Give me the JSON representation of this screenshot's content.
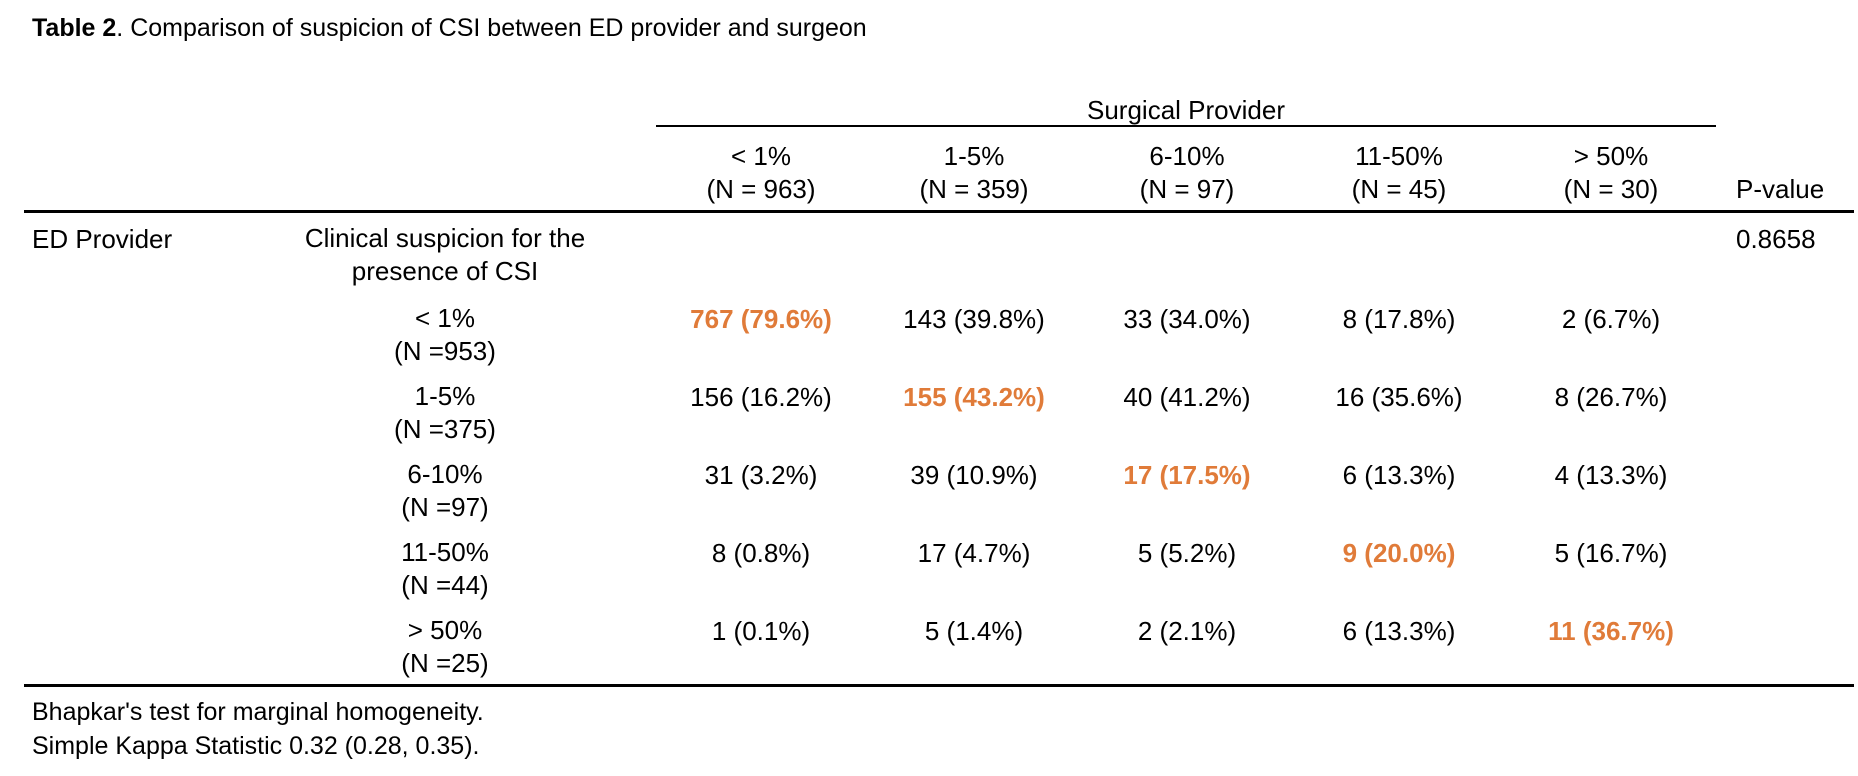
{
  "caption": {
    "bold": "Table 2",
    "rest": ". Comparison of suspicion of CSI between ED provider and surgeon"
  },
  "surgical_provider_label": "Surgical Provider",
  "columns": [
    {
      "range": "< 1%",
      "n": "(N = 963)"
    },
    {
      "range": "1-5%",
      "n": "(N = 359)"
    },
    {
      "range": "6-10%",
      "n": "(N = 97)"
    },
    {
      "range": "11-50%",
      "n": "(N = 45)"
    },
    {
      "range": "> 50%",
      "n": "(N = 30)"
    }
  ],
  "pvalue_header": "P-value",
  "ed_provider_label": "ED Provider",
  "clinical_suspicion_label": "Clinical suspicion for the presence of CSI",
  "pvalue": "0.8658",
  "rows": [
    {
      "range": "< 1%",
      "n": "(N =953)",
      "cells": [
        "767 (79.6%)",
        "143 (39.8%)",
        "33 (34.0%)",
        "8 (17.8%)",
        "2 (6.7%)"
      ]
    },
    {
      "range": "1-5%",
      "n": "(N =375)",
      "cells": [
        "156 (16.2%)",
        "155 (43.2%)",
        "40 (41.2%)",
        "16 (35.6%)",
        "8 (26.7%)"
      ]
    },
    {
      "range": "6-10%",
      "n": "(N =97)",
      "cells": [
        "31 (3.2%)",
        "39 (10.9%)",
        "17 (17.5%)",
        "6 (13.3%)",
        "4 (13.3%)"
      ]
    },
    {
      "range": "11-50%",
      "n": "(N =44)",
      "cells": [
        "8 (0.8%)",
        "17 (4.7%)",
        "5 (5.2%)",
        "9 (20.0%)",
        "5 (16.7%)"
      ]
    },
    {
      "range": "> 50%",
      "n": "(N =25)",
      "cells": [
        "1 (0.1%)",
        "5 (1.4%)",
        "2 (2.1%)",
        "6 (13.3%)",
        "11 (36.7%)"
      ]
    }
  ],
  "highlight_color": "#e07b39",
  "footnotes": [
    "Bhapkar's test for marginal homogeneity.",
    "Simple Kappa Statistic 0.32 (0.28, 0.35)."
  ]
}
